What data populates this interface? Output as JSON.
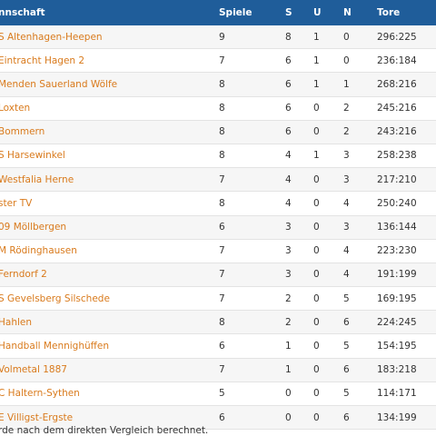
{
  "header": {
    "team": "nnschaft",
    "spiele": "Spiele",
    "s": "S",
    "u": "U",
    "n": "N",
    "tore": "Tore"
  },
  "rows": [
    {
      "team": "S Altenhagen-Heepen",
      "spiele": "9",
      "s": "8",
      "u": "1",
      "n": "0",
      "tore": "296:225"
    },
    {
      "team": "Eintracht Hagen 2",
      "spiele": "7",
      "s": "6",
      "u": "1",
      "n": "0",
      "tore": "236:184"
    },
    {
      "team": "Menden Sauerland Wölfe",
      "spiele": "8",
      "s": "6",
      "u": "1",
      "n": "1",
      "tore": "268:216"
    },
    {
      "team": "Loxten",
      "spiele": "8",
      "s": "6",
      "u": "0",
      "n": "2",
      "tore": "245:216"
    },
    {
      "team": "Bommern",
      "spiele": "8",
      "s": "6",
      "u": "0",
      "n": "2",
      "tore": "243:216"
    },
    {
      "team": "S Harsewinkel",
      "spiele": "8",
      "s": "4",
      "u": "1",
      "n": "3",
      "tore": "258:238"
    },
    {
      "team": "Westfalia Herne",
      "spiele": "7",
      "s": "4",
      "u": "0",
      "n": "3",
      "tore": "217:210"
    },
    {
      "team": "ster TV",
      "spiele": "8",
      "s": "4",
      "u": "0",
      "n": "4",
      "tore": "250:240"
    },
    {
      "team": "09 Möllbergen",
      "spiele": "6",
      "s": "3",
      "u": "0",
      "n": "3",
      "tore": "136:144"
    },
    {
      "team": "M Rödinghausen",
      "spiele": "7",
      "s": "3",
      "u": "0",
      "n": "4",
      "tore": "223:230"
    },
    {
      "team": "Ferndorf 2",
      "spiele": "7",
      "s": "3",
      "u": "0",
      "n": "4",
      "tore": "191:199"
    },
    {
      "team": "S Gevelsberg Silschede",
      "spiele": "7",
      "s": "2",
      "u": "0",
      "n": "5",
      "tore": "169:195"
    },
    {
      "team": "Hahlen",
      "spiele": "8",
      "s": "2",
      "u": "0",
      "n": "6",
      "tore": "224:245"
    },
    {
      "team": "Handball Mennighüffen",
      "spiele": "6",
      "s": "1",
      "u": "0",
      "n": "5",
      "tore": "154:195"
    },
    {
      "team": "Volmetal 1887",
      "spiele": "7",
      "s": "1",
      "u": "0",
      "n": "6",
      "tore": "183:218"
    },
    {
      "team": "C Haltern-Sythen",
      "spiele": "5",
      "s": "0",
      "u": "0",
      "n": "5",
      "tore": "114:171"
    },
    {
      "team": "E Villigst-Ergste",
      "spiele": "6",
      "s": "0",
      "u": "0",
      "n": "6",
      "tore": "134:199"
    }
  ],
  "footnote": "rde nach dem direkten Vergleich berechnet."
}
